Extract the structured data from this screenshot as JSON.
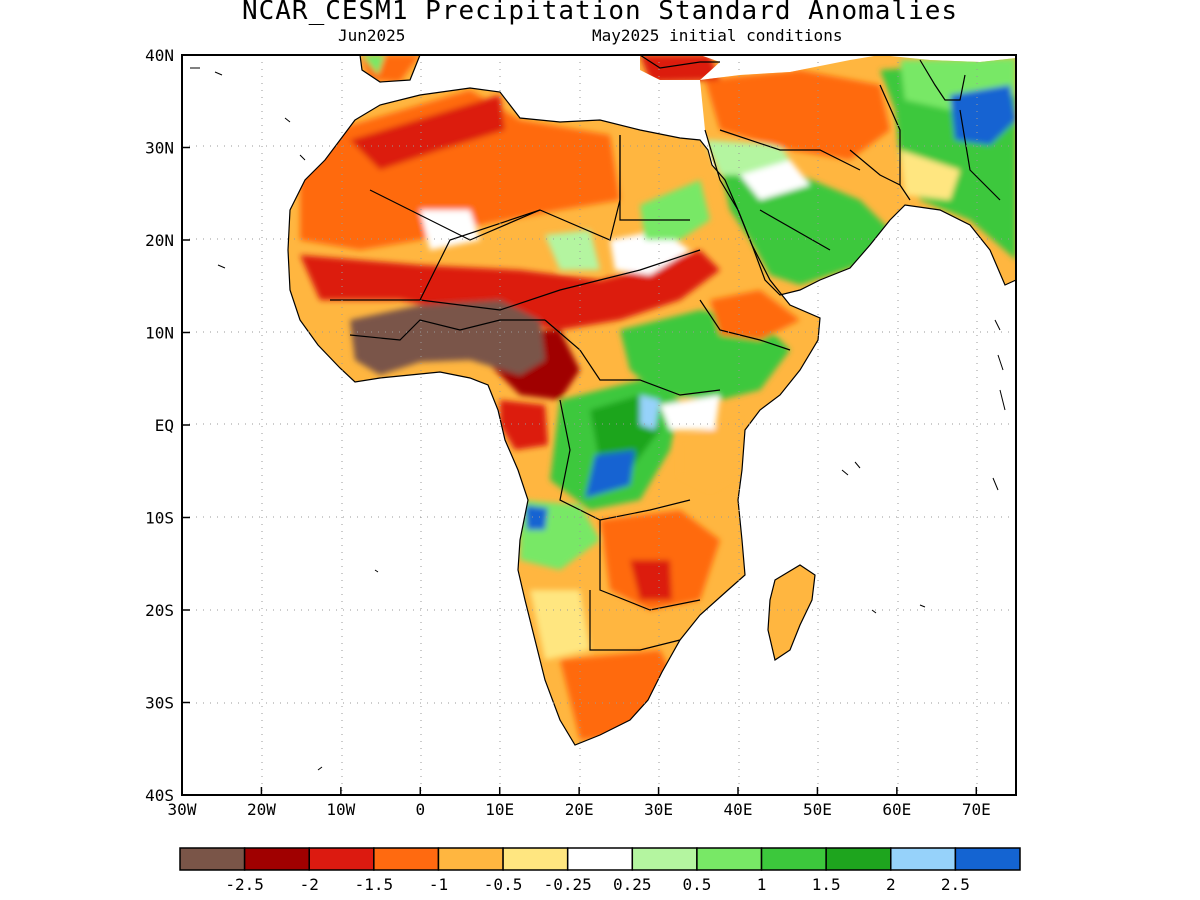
{
  "title": "NCAR_CESM1 Precipitation Standard Anomalies",
  "subtitle_left": "Jun2025",
  "subtitle_right": "May2025 initial conditions",
  "axes": {
    "lat_labels": [
      "40N",
      "30N",
      "20N",
      "10N",
      "EQ",
      "10S",
      "20S",
      "30S",
      "40S"
    ],
    "lon_labels": [
      "30W",
      "20W",
      "10W",
      "0",
      "10E",
      "20E",
      "30E",
      "40E",
      "50E",
      "60E",
      "70E"
    ],
    "lon_range": [
      -30,
      75
    ],
    "lat_range": [
      -40,
      40
    ],
    "grid": "dotted"
  },
  "legend": {
    "colors": [
      "#7a5548",
      "#a00000",
      "#dc1a10",
      "#ff6a10",
      "#ffb640",
      "#ffe680",
      "#ffffff",
      "#b4f5a0",
      "#78e866",
      "#3cc83c",
      "#1ea51e",
      "#96d2fa",
      "#1464d2"
    ],
    "labels": [
      "-2.5",
      "-2",
      "-1.5",
      "-1",
      "-0.5",
      "-0.25",
      "0.25",
      "0.5",
      "1",
      "1.5",
      "2",
      "2.5"
    ]
  },
  "anomaly_regions": [
    {
      "name": "north-africa",
      "level": "-1"
    },
    {
      "name": "sahel",
      "level": "-1.5"
    },
    {
      "name": "west-africa-guinea-coast",
      "level": "-2.5"
    },
    {
      "name": "central-african-republic",
      "level": "-2"
    },
    {
      "name": "congo-basin",
      "level": "1.5"
    },
    {
      "name": "congo-core",
      "level": "2.5"
    },
    {
      "name": "east-africa-highlands",
      "level": "1"
    },
    {
      "name": "arabian-peninsula",
      "level": "1"
    },
    {
      "name": "iran-pakistan",
      "level": "2.5"
    },
    {
      "name": "southern-africa",
      "level": "-1"
    },
    {
      "name": "madagascar",
      "level": "-0.5"
    }
  ]
}
